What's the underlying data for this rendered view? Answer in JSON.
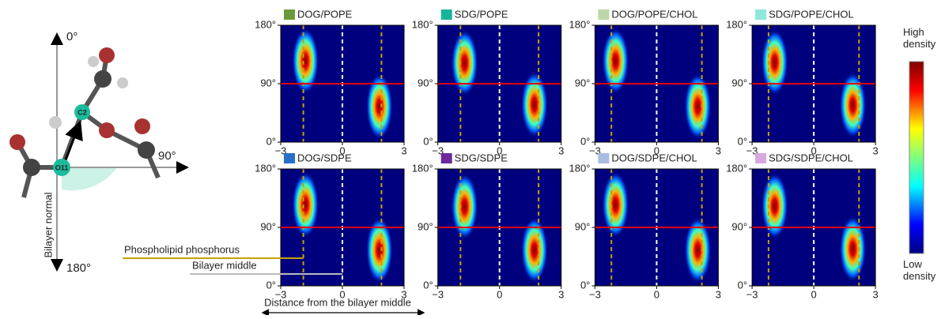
{
  "molecule": {
    "top": "0°",
    "right": "90°",
    "bottom": "180°",
    "axis": "Bilayer normal",
    "atom1": "O11",
    "atom2": "C2"
  },
  "chart_data": {
    "type": "heatmap",
    "xlabel": "Distance from the bilayer middle",
    "xlim": [
      -3,
      3
    ],
    "xticks": [
      {
        "value": -3,
        "label": "−3"
      },
      0,
      3
    ],
    "ylim": [
      0,
      180
    ],
    "yticks": [
      {
        "value": 0,
        "label": "0°"
      },
      {
        "value": 90,
        "label": "90°"
      },
      {
        "value": 180,
        "label": "180°"
      }
    ],
    "reference_angle": 90,
    "bilayer_middle": 0,
    "annotations": {
      "phosphorus": "Phospholipid phosphorus",
      "middle": "Bilayer middle"
    },
    "colorbar": {
      "high": "High density",
      "low": "Low density"
    },
    "panels": [
      {
        "name": "DOG/POPE",
        "color": "#6a9a3a",
        "phosphorus": [
          -1.9,
          1.9
        ],
        "peaks": {
          "x": [
            -1.8,
            1.8
          ],
          "y": [
            125,
            55
          ]
        }
      },
      {
        "name": "SDG/POPE",
        "color": "#1ab39a",
        "phosphorus": [
          -1.9,
          1.9
        ],
        "peaks": {
          "x": [
            -1.7,
            1.7
          ],
          "y": [
            122,
            58
          ]
        }
      },
      {
        "name": "DOG/POPE/CHOL",
        "color": "#bcd8a8",
        "phosphorus": [
          -2.2,
          2.2
        ],
        "peaks": {
          "x": [
            -2.0,
            2.0
          ],
          "y": [
            125,
            55
          ]
        }
      },
      {
        "name": "SDG/POPE/CHOL",
        "color": "#8ee8dc",
        "phosphorus": [
          -2.2,
          2.2
        ],
        "peaks": {
          "x": [
            -1.9,
            1.9
          ],
          "y": [
            123,
            57
          ]
        }
      },
      {
        "name": "DOG/SDPE",
        "color": "#2a6ec8",
        "phosphorus": [
          -1.9,
          1.9
        ],
        "peaks": {
          "x": [
            -1.8,
            1.8
          ],
          "y": [
            125,
            55
          ]
        }
      },
      {
        "name": "SDG/SDPE",
        "color": "#6a2a9a",
        "phosphorus": [
          -1.9,
          1.9
        ],
        "peaks": {
          "x": [
            -1.7,
            1.7
          ],
          "y": [
            122,
            55
          ]
        }
      },
      {
        "name": "DOG/SDPE/CHOL",
        "color": "#a8bce0",
        "phosphorus": [
          -2.2,
          2.2
        ],
        "peaks": {
          "x": [
            -2.0,
            2.0
          ],
          "y": [
            125,
            55
          ]
        }
      },
      {
        "name": "SDG/SDPE/CHOL",
        "color": "#d8a8e0",
        "phosphorus": [
          -2.2,
          2.2
        ],
        "peaks": {
          "x": [
            -1.9,
            1.9
          ],
          "y": [
            123,
            57
          ]
        }
      }
    ]
  }
}
